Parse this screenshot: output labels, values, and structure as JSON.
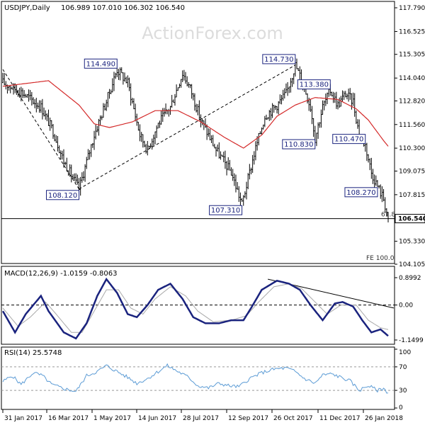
{
  "chart_data": [
    {
      "type": "candlestick",
      "symbol_label": "USDJPY,Daily",
      "ohlc_label": "106.989 107.010 106.302 106.540",
      "watermark": "ActionForex.com",
      "y_ticks": [
        "117.790",
        "116.525",
        "115.305",
        "114.040",
        "112.820",
        "111.560",
        "110.300",
        "109.075",
        "107.815",
        "106.540",
        "105.330",
        "104.105"
      ],
      "y_range": [
        104.105,
        117.79
      ],
      "current_price": 106.54,
      "current_price_label": "106.540",
      "x_ticks": [
        "31 Jan 2017",
        "16 Mar 2017",
        "1 May 2017",
        "14 Jun 2017",
        "28 Jul 2017",
        "12 Sep 2017",
        "26 Oct 2017",
        "11 Dec 2017",
        "26 Jan 2018"
      ],
      "price_waypoints": [
        [
          0,
          113.8
        ],
        [
          12,
          113.3
        ],
        [
          25,
          112.5
        ],
        [
          33,
          111.2
        ],
        [
          40,
          109.6
        ],
        [
          50,
          108.12
        ],
        [
          60,
          111.0
        ],
        [
          68,
          112.8
        ],
        [
          75,
          114.49
        ],
        [
          82,
          113.8
        ],
        [
          90,
          111.0
        ],
        [
          95,
          110.2
        ],
        [
          102,
          111.6
        ],
        [
          110,
          112.5
        ],
        [
          118,
          114.3
        ],
        [
          123,
          113.5
        ],
        [
          130,
          111.8
        ],
        [
          140,
          110.2
        ],
        [
          150,
          109.0
        ],
        [
          157,
          107.31
        ],
        [
          165,
          110.0
        ],
        [
          172,
          112.0
        ],
        [
          180,
          112.6
        ],
        [
          186,
          113.2
        ],
        [
          192,
          114.73
        ],
        [
          197,
          113.8
        ],
        [
          202,
          112.5
        ],
        [
          205,
          110.83
        ],
        [
          210,
          112.5
        ],
        [
          215,
          113.38
        ],
        [
          220,
          112.6
        ],
        [
          225,
          113.2
        ],
        [
          230,
          112.8
        ],
        [
          234,
          111.0
        ],
        [
          238,
          110.47
        ],
        [
          242,
          109.0
        ],
        [
          246,
          108.27
        ],
        [
          250,
          107.6
        ],
        [
          253,
          106.54
        ]
      ],
      "moving_average_waypoints": [
        [
          0,
          113.6
        ],
        [
          30,
          113.9
        ],
        [
          50,
          112.6
        ],
        [
          60,
          111.6
        ],
        [
          70,
          111.4
        ],
        [
          85,
          111.7
        ],
        [
          100,
          112.3
        ],
        [
          115,
          112.3
        ],
        [
          130,
          111.7
        ],
        [
          145,
          110.9
        ],
        [
          158,
          110.3
        ],
        [
          170,
          111.0
        ],
        [
          180,
          112.0
        ],
        [
          192,
          112.6
        ],
        [
          205,
          113.0
        ],
        [
          220,
          112.9
        ],
        [
          232,
          112.4
        ],
        [
          240,
          111.8
        ],
        [
          250,
          110.7
        ],
        [
          253,
          110.4
        ]
      ],
      "labels": [
        {
          "text": "108.120",
          "value": 108.12,
          "bar": 50,
          "side": "below"
        },
        {
          "text": "114.490",
          "value": 114.49,
          "bar": 75,
          "side": "above"
        },
        {
          "text": "107.310",
          "value": 107.31,
          "bar": 157,
          "side": "below"
        },
        {
          "text": "114.730",
          "value": 114.73,
          "bar": 192,
          "side": "above"
        },
        {
          "text": "110.830",
          "value": 110.83,
          "bar": 205,
          "side": "below"
        },
        {
          "text": "113.380",
          "value": 113.38,
          "bar": 215,
          "side": "above"
        },
        {
          "text": "110.470",
          "value": 110.47,
          "bar": 238,
          "side": "above"
        },
        {
          "text": "108.270",
          "value": 108.27,
          "bar": 246,
          "side": "below"
        }
      ],
      "annotations": [
        "61.8",
        "FE 100.0"
      ],
      "trend_lines": [
        {
          "from": [
            0,
            114.5
          ],
          "to": [
            50,
            108.12
          ]
        },
        {
          "from": [
            50,
            108.12
          ],
          "to": [
            192,
            114.73
          ]
        }
      ]
    },
    {
      "type": "line",
      "indicator": "MACD",
      "label": "MACD(12,26,9) -1.0159 -0.8063",
      "y_ticks": [
        "0.8992",
        "0.00",
        "-1.1499"
      ],
      "y_range": [
        -1.1499,
        0.8992
      ],
      "macd_waypoints": [
        [
          0,
          -0.2
        ],
        [
          8,
          -0.9
        ],
        [
          15,
          -0.3
        ],
        [
          25,
          0.3
        ],
        [
          30,
          -0.2
        ],
        [
          40,
          -0.9
        ],
        [
          48,
          -1.1
        ],
        [
          55,
          -0.6
        ],
        [
          62,
          0.3
        ],
        [
          68,
          0.85
        ],
        [
          75,
          0.4
        ],
        [
          82,
          -0.3
        ],
        [
          88,
          -0.4
        ],
        [
          95,
          0.0
        ],
        [
          102,
          0.5
        ],
        [
          110,
          0.7
        ],
        [
          118,
          0.2
        ],
        [
          125,
          -0.4
        ],
        [
          133,
          -0.6
        ],
        [
          142,
          -0.6
        ],
        [
          150,
          -0.5
        ],
        [
          158,
          -0.5
        ],
        [
          163,
          -0.1
        ],
        [
          170,
          0.5
        ],
        [
          180,
          0.8
        ],
        [
          188,
          0.7
        ],
        [
          195,
          0.5
        ],
        [
          202,
          0.0
        ],
        [
          210,
          -0.5
        ],
        [
          218,
          0.05
        ],
        [
          223,
          0.1
        ],
        [
          230,
          -0.05
        ],
        [
          236,
          -0.5
        ],
        [
          242,
          -0.9
        ],
        [
          248,
          -0.8
        ],
        [
          253,
          -1.0159
        ]
      ],
      "signal_waypoints": [
        [
          0,
          -0.1
        ],
        [
          10,
          -0.7
        ],
        [
          18,
          -0.4
        ],
        [
          28,
          0.1
        ],
        [
          35,
          -0.3
        ],
        [
          45,
          -0.9
        ],
        [
          52,
          -0.9
        ],
        [
          60,
          -0.2
        ],
        [
          68,
          0.5
        ],
        [
          76,
          0.5
        ],
        [
          84,
          -0.1
        ],
        [
          92,
          -0.3
        ],
        [
          100,
          0.2
        ],
        [
          110,
          0.6
        ],
        [
          120,
          0.3
        ],
        [
          128,
          -0.2
        ],
        [
          138,
          -0.55
        ],
        [
          150,
          -0.5
        ],
        [
          160,
          -0.35
        ],
        [
          168,
          0.1
        ],
        [
          178,
          0.6
        ],
        [
          188,
          0.7
        ],
        [
          196,
          0.55
        ],
        [
          205,
          0.1
        ],
        [
          213,
          -0.3
        ],
        [
          222,
          0.0
        ],
        [
          232,
          0.0
        ],
        [
          240,
          -0.5
        ],
        [
          248,
          -0.75
        ],
        [
          253,
          -0.8063
        ]
      ],
      "trend_line": {
        "from": [
          174,
          0.85
        ],
        "to": [
          253,
          0.0
        ]
      }
    },
    {
      "type": "line",
      "indicator": "RSI",
      "label": "RSI(14) 25.5748",
      "y_ticks": [
        "100",
        "70",
        "30",
        "0"
      ],
      "levels": [
        70,
        30
      ],
      "rsi_waypoints": [
        [
          0,
          45
        ],
        [
          6,
          55
        ],
        [
          12,
          40
        ],
        [
          20,
          60
        ],
        [
          26,
          55
        ],
        [
          32,
          40
        ],
        [
          40,
          33
        ],
        [
          48,
          28
        ],
        [
          55,
          55
        ],
        [
          62,
          62
        ],
        [
          68,
          72
        ],
        [
          75,
          62
        ],
        [
          82,
          52
        ],
        [
          88,
          42
        ],
        [
          95,
          50
        ],
        [
          102,
          62
        ],
        [
          108,
          72
        ],
        [
          115,
          62
        ],
        [
          122,
          52
        ],
        [
          128,
          38
        ],
        [
          135,
          34
        ],
        [
          142,
          42
        ],
        [
          148,
          38
        ],
        [
          155,
          36
        ],
        [
          162,
          50
        ],
        [
          170,
          60
        ],
        [
          178,
          66
        ],
        [
          186,
          68
        ],
        [
          192,
          62
        ],
        [
          198,
          50
        ],
        [
          205,
          42
        ],
        [
          210,
          56
        ],
        [
          216,
          58
        ],
        [
          222,
          52
        ],
        [
          228,
          46
        ],
        [
          234,
          30
        ],
        [
          240,
          38
        ],
        [
          246,
          30
        ],
        [
          250,
          33
        ],
        [
          253,
          25.5748
        ]
      ]
    }
  ]
}
